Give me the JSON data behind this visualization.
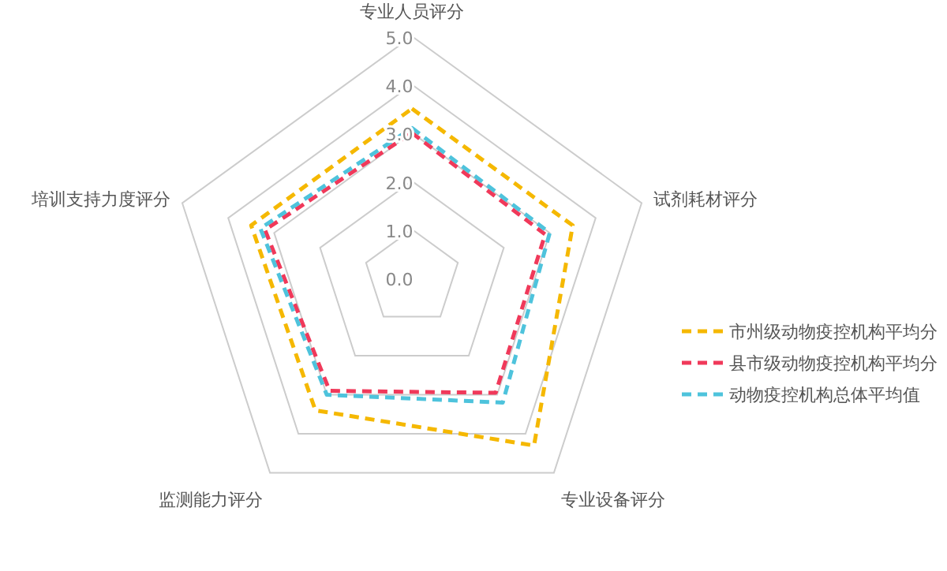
{
  "chart_data": {
    "type": "radar",
    "categories": [
      "专业人员评分",
      "试剂耗材评分",
      "专业设备评分",
      "监测能力评分",
      "培训支持力度评分"
    ],
    "ylim": [
      0,
      5
    ],
    "yticks": [
      {
        "value": 0,
        "label": "0.0"
      },
      {
        "value": 1,
        "label": "1.0"
      },
      {
        "value": 2,
        "label": "2.0"
      },
      {
        "value": 3,
        "label": "3.0"
      },
      {
        "value": 4,
        "label": "4.0"
      },
      {
        "value": 5,
        "label": "5.0"
      }
    ],
    "line_style": "dashed",
    "marker": "none",
    "legend": "right",
    "series": [
      {
        "name": "市州级动物疫控机构平均分",
        "color": "#f5b800",
        "values": [
          3.5,
          3.5,
          4.3,
          3.4,
          3.5
        ]
      },
      {
        "name": "县市级动物疫控机构平均分",
        "color": "#f0395a",
        "values": [
          3.0,
          2.9,
          2.95,
          2.9,
          3.2
        ]
      },
      {
        "name": "动物疫控机构总体平均值",
        "color": "#4ec3dc",
        "values": [
          3.1,
          3.0,
          3.2,
          3.0,
          3.3
        ]
      }
    ]
  }
}
